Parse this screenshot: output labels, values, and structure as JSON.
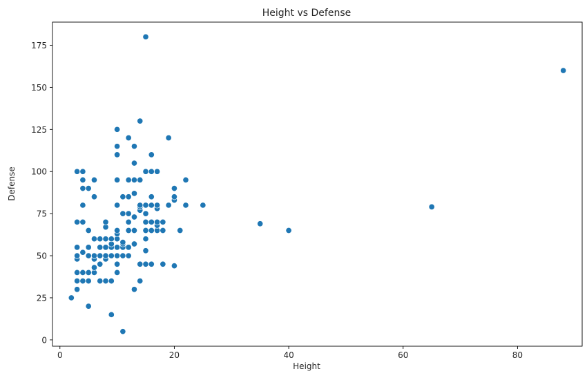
{
  "chart_data": {
    "type": "scatter",
    "title": "Height vs Defense",
    "xlabel": "Height",
    "ylabel": "Defense",
    "xlim": [
      -1.3,
      91.3
    ],
    "ylim": [
      -3.75,
      188.75
    ],
    "xticks": [
      0,
      20,
      40,
      60,
      80
    ],
    "yticks": [
      0,
      25,
      50,
      75,
      100,
      125,
      150,
      175
    ],
    "xtick_labels": [
      "0",
      "20",
      "40",
      "60",
      "80"
    ],
    "ytick_labels": [
      "0",
      "25",
      "50",
      "75",
      "100",
      "125",
      "150",
      "175"
    ],
    "grid": false,
    "point_color": "#1f77b4",
    "points": [
      [
        2,
        25
      ],
      [
        3,
        30
      ],
      [
        3,
        35
      ],
      [
        3,
        40
      ],
      [
        3,
        48
      ],
      [
        3,
        50
      ],
      [
        3,
        55
      ],
      [
        3,
        70
      ],
      [
        3,
        100
      ],
      [
        4,
        35
      ],
      [
        4,
        40
      ],
      [
        4,
        52
      ],
      [
        4,
        70
      ],
      [
        4,
        80
      ],
      [
        4,
        90
      ],
      [
        4,
        95
      ],
      [
        4,
        100
      ],
      [
        5,
        20
      ],
      [
        5,
        35
      ],
      [
        5,
        40
      ],
      [
        5,
        50
      ],
      [
        5,
        55
      ],
      [
        5,
        65
      ],
      [
        5,
        90
      ],
      [
        6,
        40
      ],
      [
        6,
        43
      ],
      [
        6,
        48
      ],
      [
        6,
        50
      ],
      [
        6,
        60
      ],
      [
        6,
        85
      ],
      [
        6,
        95
      ],
      [
        7,
        35
      ],
      [
        7,
        45
      ],
      [
        7,
        50
      ],
      [
        7,
        55
      ],
      [
        7,
        60
      ],
      [
        8,
        35
      ],
      [
        8,
        48
      ],
      [
        8,
        50
      ],
      [
        8,
        55
      ],
      [
        8,
        60
      ],
      [
        8,
        67
      ],
      [
        8,
        70
      ],
      [
        9,
        15
      ],
      [
        9,
        35
      ],
      [
        9,
        50
      ],
      [
        9,
        55
      ],
      [
        9,
        57
      ],
      [
        9,
        60
      ],
      [
        10,
        40
      ],
      [
        10,
        45
      ],
      [
        10,
        50
      ],
      [
        10,
        55
      ],
      [
        10,
        60
      ],
      [
        10,
        63
      ],
      [
        10,
        65
      ],
      [
        10,
        80
      ],
      [
        10,
        95
      ],
      [
        10,
        110
      ],
      [
        10,
        115
      ],
      [
        10,
        125
      ],
      [
        11,
        5
      ],
      [
        11,
        50
      ],
      [
        11,
        55
      ],
      [
        11,
        57
      ],
      [
        11,
        58
      ],
      [
        11,
        75
      ],
      [
        11,
        85
      ],
      [
        12,
        50
      ],
      [
        12,
        55
      ],
      [
        12,
        65
      ],
      [
        12,
        70
      ],
      [
        12,
        75
      ],
      [
        12,
        85
      ],
      [
        12,
        95
      ],
      [
        12,
        120
      ],
      [
        13,
        30
      ],
      [
        13,
        57
      ],
      [
        13,
        65
      ],
      [
        13,
        73
      ],
      [
        13,
        87
      ],
      [
        13,
        95
      ],
      [
        13,
        105
      ],
      [
        13,
        115
      ],
      [
        14,
        35
      ],
      [
        14,
        45
      ],
      [
        14,
        77
      ],
      [
        14,
        79
      ],
      [
        14,
        80
      ],
      [
        14,
        95
      ],
      [
        14,
        130
      ],
      [
        15,
        45
      ],
      [
        15,
        53
      ],
      [
        15,
        60
      ],
      [
        15,
        65
      ],
      [
        15,
        70
      ],
      [
        15,
        75
      ],
      [
        15,
        80
      ],
      [
        15,
        100
      ],
      [
        15,
        180
      ],
      [
        16,
        45
      ],
      [
        16,
        65
      ],
      [
        16,
        70
      ],
      [
        16,
        80
      ],
      [
        16,
        85
      ],
      [
        16,
        100
      ],
      [
        16,
        110
      ],
      [
        17,
        65
      ],
      [
        17,
        68
      ],
      [
        17,
        70
      ],
      [
        17,
        78
      ],
      [
        17,
        80
      ],
      [
        17,
        100
      ],
      [
        18,
        45
      ],
      [
        18,
        65
      ],
      [
        18,
        70
      ],
      [
        19,
        80
      ],
      [
        19,
        120
      ],
      [
        20,
        44
      ],
      [
        20,
        83
      ],
      [
        20,
        85
      ],
      [
        20,
        90
      ],
      [
        21,
        65
      ],
      [
        22,
        80
      ],
      [
        22,
        95
      ],
      [
        25,
        80
      ],
      [
        35,
        69
      ],
      [
        40,
        65
      ],
      [
        65,
        79
      ],
      [
        88,
        160
      ]
    ]
  }
}
